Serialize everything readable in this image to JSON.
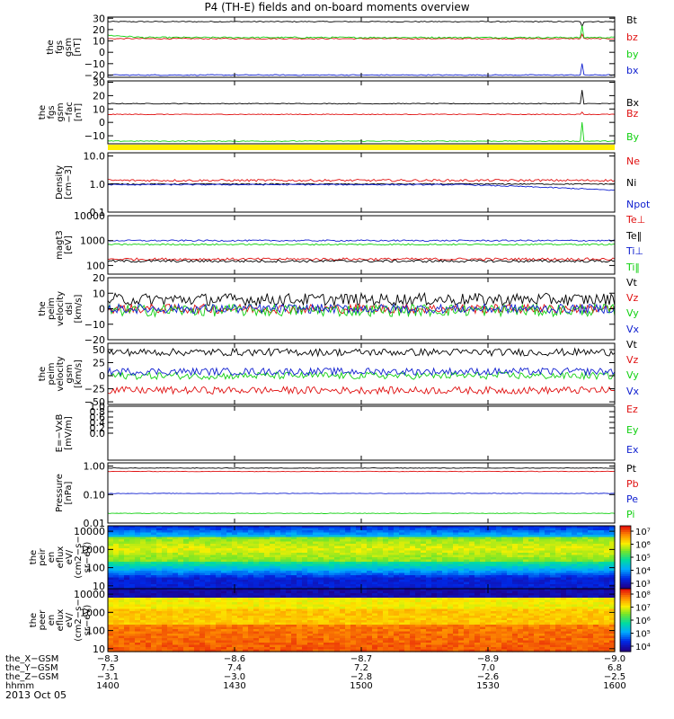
{
  "title": "P4 (TH-E) fields and on-board moments overview",
  "date": "2013 Oct 05",
  "colors": {
    "black": "#000000",
    "red": "#e01010",
    "green": "#10d010",
    "blue": "#1020d0",
    "yellow": "#ffee00"
  },
  "chart_data": [
    {
      "id": "fgs-gsm",
      "type": "line",
      "ylabel": [
        "the",
        "fgs",
        "gsm",
        "[nT]"
      ],
      "ylim": [
        -22,
        31
      ],
      "yticks": [
        {
          "v": 30,
          "t": "30"
        },
        {
          "v": 20,
          "t": "20"
        },
        {
          "v": 10,
          "t": "10"
        },
        {
          "v": 0,
          "t": "0"
        },
        {
          "v": -10,
          "t": "−10"
        },
        {
          "v": -20,
          "t": "−20"
        }
      ],
      "series": [
        {
          "name": "Bt",
          "color": "#000000",
          "level": 27,
          "noise": 0.4,
          "spike": -4
        },
        {
          "name": "bz",
          "color": "#e01010",
          "level": 12,
          "noise": 0.4,
          "spike": 4
        },
        {
          "name": "by",
          "color": "#10d010",
          "level": 13,
          "noise": 0.6,
          "start": 15,
          "spike": 10
        },
        {
          "name": "bx",
          "color": "#1020d0",
          "level": -20,
          "noise": 0.4,
          "spike": 10
        }
      ]
    },
    {
      "id": "fgs-gsm-fac",
      "type": "line",
      "ylabel": [
        "the",
        "fgs",
        "gsm",
        "−fac",
        "[nT]"
      ],
      "ylim": [
        -16,
        31
      ],
      "yticks": [
        {
          "v": 30,
          "t": "30"
        },
        {
          "v": 20,
          "t": "20"
        },
        {
          "v": 10,
          "t": "10"
        },
        {
          "v": 0,
          "t": "0"
        },
        {
          "v": -10,
          "t": "−10"
        }
      ],
      "series": [
        {
          "name": "Bx",
          "color": "#000000",
          "level": 14,
          "noise": 0.3,
          "spike": 10
        },
        {
          "name": "Bz",
          "color": "#e01010",
          "level": 6,
          "noise": 0.3,
          "spike": 2
        },
        {
          "name": "By",
          "color": "#10d010",
          "level": -14,
          "noise": 0.3,
          "spike": 14
        }
      ]
    },
    {
      "id": "density",
      "type": "line",
      "ylabel": [
        "Density",
        "[cm−3]"
      ],
      "log": true,
      "ylim": [
        0.1,
        13
      ],
      "yticks": [
        {
          "v": 10,
          "t": "10.0"
        },
        {
          "v": 1,
          "t": "1.0"
        },
        {
          "v": 0.1,
          "t": "0.1"
        }
      ],
      "series": [
        {
          "name": "Ne",
          "color": "#e01010",
          "level": 1.35,
          "noise": 0.04
        },
        {
          "name": "Ni",
          "color": "#000000",
          "level": 1.0,
          "noise": 0.02
        },
        {
          "name": "Npot",
          "color": "#1020d0",
          "level": 0.95,
          "noise": 0.02,
          "trend": -0.35
        }
      ]
    },
    {
      "id": "magt3",
      "type": "line",
      "ylabel": [
        "magt3",
        "[eV]"
      ],
      "log": true,
      "ylim": [
        45,
        10000
      ],
      "yticks": [
        {
          "v": 10000,
          "t": "10000"
        },
        {
          "v": 1000,
          "t": "1000"
        },
        {
          "v": 100,
          "t": "100"
        }
      ],
      "series": [
        {
          "name": "Te⊥",
          "color": "#e01010",
          "level": 180,
          "noise": 0.05
        },
        {
          "name": "Te‖",
          "color": "#000000",
          "level": 150,
          "noise": 0.05
        },
        {
          "name": "Ti⊥",
          "color": "#1020d0",
          "level": 1000,
          "noise": 0.03
        },
        {
          "name": "Ti‖",
          "color": "#10d010",
          "level": 700,
          "noise": 0.03
        }
      ]
    },
    {
      "id": "peim-velocity",
      "type": "line",
      "ylabel": [
        "the",
        "peim",
        "velocity",
        "dsl",
        "[km/s]"
      ],
      "ylim": [
        -20,
        20
      ],
      "yticks": [
        {
          "v": 20,
          "t": "20"
        },
        {
          "v": 10,
          "t": "10"
        },
        {
          "v": 0,
          "t": "0"
        },
        {
          "v": -10,
          "t": "−10"
        },
        {
          "v": -20,
          "t": "−20"
        }
      ],
      "series": [
        {
          "name": "Vt",
          "color": "#000000",
          "level": 6,
          "noise": 4
        },
        {
          "name": "Vz",
          "color": "#e01010",
          "level": 0,
          "noise": 3
        },
        {
          "name": "Vy",
          "color": "#10d010",
          "level": -1,
          "noise": 4
        },
        {
          "name": "Vx",
          "color": "#1020d0",
          "level": 0,
          "noise": 3
        }
      ]
    },
    {
      "id": "peim-velocity-gsm",
      "type": "line",
      "ylabel": [
        "the",
        "peim",
        "velocity",
        "gsm",
        "[km/s]"
      ],
      "ylim": [
        -55,
        62
      ],
      "yticks": [
        {
          "v": 50,
          "t": "50"
        },
        {
          "v": 25,
          "t": "25"
        },
        {
          "v": 0,
          "t": "0"
        },
        {
          "v": -25,
          "t": "−25"
        },
        {
          "v": -50,
          "t": "−50"
        }
      ],
      "series": [
        {
          "name": "Vt",
          "color": "#000000",
          "level": 45,
          "noise": 7
        },
        {
          "name": "Vz",
          "color": "#e01010",
          "level": -28,
          "noise": 7
        },
        {
          "name": "Vy",
          "color": "#10d010",
          "level": 0,
          "noise": 7
        },
        {
          "name": "Vx",
          "color": "#1020d0",
          "level": 8,
          "noise": 7
        }
      ]
    },
    {
      "id": "efield",
      "type": "line",
      "ylabel": [
        "E=−VxB",
        "[mV/m]"
      ],
      "ylim": [
        -1,
        1
      ],
      "yticks": [
        {
          "v": 1,
          "t": "1.0"
        },
        {
          "v": 0.8,
          "t": "0.8"
        },
        {
          "v": 0.6,
          "t": "0.6"
        },
        {
          "v": 0.4,
          "t": "0.4"
        },
        {
          "v": 0.2,
          "t": "0.2"
        },
        {
          "v": 0,
          "t": "0.0"
        }
      ],
      "series": [
        {
          "name": "Ez",
          "color": "#e01010"
        },
        {
          "name": "Ey",
          "color": "#10d010"
        },
        {
          "name": "Ex",
          "color": "#1020d0"
        }
      ]
    },
    {
      "id": "pressure",
      "type": "line",
      "ylabel": [
        "Pressure",
        "[nPa]"
      ],
      "log": true,
      "ylim": [
        0.01,
        1.3
      ],
      "yticks": [
        {
          "v": 1,
          "t": "1.00"
        },
        {
          "v": 0.1,
          "t": "0.10"
        },
        {
          "v": 0.01,
          "t": "0.01"
        }
      ],
      "series": [
        {
          "name": "Pt",
          "color": "#000000",
          "level": 0.85,
          "noise": 0.01
        },
        {
          "name": "Pb",
          "color": "#e01010",
          "level": 0.65,
          "noise": 0.01
        },
        {
          "name": "Pe",
          "color": "#1020d0",
          "level": 0.11,
          "noise": 0.01
        },
        {
          "name": "Pi",
          "color": "#10d010",
          "level": 0.022,
          "noise": 0.01
        }
      ]
    },
    {
      "id": "peir-en-eflux",
      "type": "heatmap",
      "ylabel": [
        "the",
        "peir",
        "en",
        "eflux",
        "eV/",
        "(cm2−s−",
        "sr−eV)"
      ],
      "log": true,
      "ylim": [
        7,
        20000
      ],
      "yticks": [
        {
          "v": 10000,
          "t": "10000"
        },
        {
          "v": 1000,
          "t": "1000"
        },
        {
          "v": 100,
          "t": "100"
        },
        {
          "v": 10,
          "t": "10"
        }
      ],
      "colorbar_ticks": [
        "10⁷",
        "10⁶",
        "10⁵",
        "10⁴",
        "10³"
      ],
      "colorbar_range": [
        3,
        7.5
      ]
    },
    {
      "id": "peer-en-eflux",
      "type": "heatmap",
      "ylabel": [
        "the",
        "peer",
        "en",
        "eflux",
        "eV/",
        "(cm2−s−",
        "sr−eV)"
      ],
      "log": true,
      "ylim": [
        7,
        20000
      ],
      "yticks": [
        {
          "v": 10000,
          "t": "10000"
        },
        {
          "v": 1000,
          "t": "1000"
        },
        {
          "v": 100,
          "t": "100"
        },
        {
          "v": 10,
          "t": "10"
        }
      ],
      "colorbar_ticks": [
        "10⁸",
        "10⁷",
        "10⁶",
        "10⁵",
        "10⁴"
      ],
      "colorbar_range": [
        3.5,
        8.5
      ]
    }
  ],
  "x_axis": {
    "rows": [
      {
        "label": "the_X−GSM",
        "values": [
          "−8.3",
          "−8.6",
          "−8.7",
          "−8.9",
          "−9.0"
        ]
      },
      {
        "label": "the_Y−GSM",
        "values": [
          "7.5",
          "7.4",
          "7.2",
          "7.0",
          "6.8"
        ]
      },
      {
        "label": "the_Z−GSM",
        "values": [
          "−3.1",
          "−3.0",
          "−2.8",
          "−2.6",
          "−2.5"
        ]
      },
      {
        "label": "hhmm",
        "values": [
          "1400",
          "1430",
          "1500",
          "1530",
          "1600"
        ]
      }
    ]
  }
}
